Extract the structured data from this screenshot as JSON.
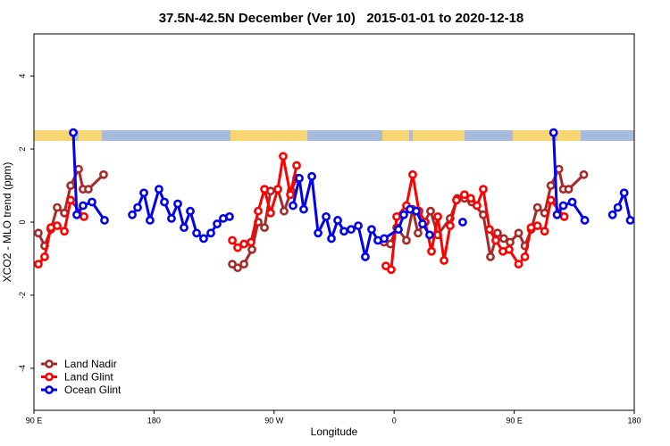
{
  "chart_data": {
    "type": "line",
    "title": "37.5N-42.5N December (Ver 10)   2015-01-01 to 2020-12-18",
    "x_label": "Longitude",
    "y_label": "XCO2 - MLO trend (ppm)",
    "xlim": [
      90,
      540
    ],
    "ylim": [
      -5.15,
      5.15
    ],
    "xticks": [
      {
        "value": 90,
        "label": "90 E"
      },
      180,
      {
        "value": 270,
        "label": "90 W"
      },
      {
        "value": 360,
        "label": "0"
      },
      {
        "value": 450,
        "label": "90 E"
      },
      {
        "value": 540,
        "label": "180"
      }
    ],
    "yticks": [
      4,
      2,
      0,
      -2,
      -4
    ],
    "legend": "bottomleft",
    "series": [
      {
        "name": "Land Nadir",
        "color": "#a52a2a",
        "x": [
          93.3,
          98.0,
          102.7,
          107.4,
          112.8,
          117.5,
          123.5,
          126.8,
          130.8,
          142.2,
          null,
          238.7,
          242.7,
          247.4,
          253.4,
          258.1,
          262.8,
          267.4,
          272.8,
          277.5,
          282.8,
          286.9,
          null,
          352.5,
          357.2,
          361.9,
          369.2,
          373.9,
          377.9,
          387.3,
          392.7,
          402.0,
          407.4,
          412.7,
          418.1,
          426.8,
          432.2,
          437.5,
          442.2,
          446.9,
          453.3,
          458.0,
          462.7,
          467.4,
          472.8,
          477.5,
          483.5,
          486.8,
          490.8,
          502.2
        ],
        "values": [
          -0.3,
          -0.65,
          -0.2,
          0.4,
          0.25,
          1.0,
          1.45,
          0.9,
          0.9,
          1.3,
          null,
          -1.15,
          -1.25,
          -1.15,
          -0.75,
          0.0,
          -0.15,
          0.85,
          0.9,
          0.3,
          0.85,
          1.2,
          null,
          -0.55,
          -0.6,
          -0.15,
          -0.5,
          0.35,
          -0.3,
          0.3,
          -0.35,
          0.1,
          0.65,
          0.65,
          0.55,
          0.2,
          -0.95,
          -0.3,
          -0.45,
          -0.55,
          -0.3,
          -0.65,
          -0.2,
          0.4,
          0.25,
          1.0,
          1.45,
          0.9,
          0.9,
          1.3
        ]
      },
      {
        "name": "Land Glint",
        "color": "#ff0000",
        "x": [
          93.3,
          98.0,
          102.7,
          107.4,
          112.8,
          117.5,
          127.5,
          null,
          238.7,
          242.7,
          247.4,
          252.7,
          258.1,
          262.8,
          267.4,
          272.8,
          276.8,
          282.2,
          286.9,
          null,
          353.8,
          357.8,
          361.9,
          369.2,
          373.9,
          378.6,
          383.3,
          388.0,
          392.7,
          397.4,
          402.0,
          406.7,
          412.7,
          417.4,
          422.1,
          426.8,
          431.5,
          436.2,
          441.5,
          446.2,
          453.3,
          458.0,
          462.7,
          467.4,
          472.8,
          477.5,
          487.5
        ],
        "values": [
          -1.15,
          -0.95,
          -0.15,
          -0.1,
          -0.25,
          0.6,
          0.15,
          null,
          -0.5,
          -0.7,
          -0.6,
          -0.55,
          0.3,
          0.9,
          0.25,
          0.9,
          1.8,
          0.75,
          1.55,
          null,
          -1.2,
          -1.3,
          0.15,
          0.45,
          1.3,
          0.3,
          0.0,
          -0.8,
          0.15,
          -1.05,
          -0.1,
          0.6,
          0.75,
          0.65,
          0.45,
          0.9,
          -0.2,
          -0.5,
          -0.8,
          -0.75,
          -1.15,
          -0.95,
          -0.15,
          -0.1,
          -0.25,
          0.6,
          0.15
        ]
      },
      {
        "name": "Ocean Glint",
        "color": "#0000ee",
        "x": [
          119.5,
          122.1,
          126.8,
          133.5,
          142.9,
          null,
          163.7,
          167.7,
          172.4,
          177.0,
          183.7,
          187.8,
          193.1,
          197.8,
          202.5,
          207.2,
          211.9,
          217.2,
          222.6,
          227.3,
          231.9,
          236.6,
          null,
          284.2,
          288.9,
          292.2,
          298.3,
          303.0,
          309.0,
          313.0,
          317.7,
          322.4,
          327.7,
          333.1,
          338.4,
          343.1,
          347.8,
          352.5,
          363.2,
          367.2,
          371.9,
          376.6,
          381.3,
          386.6,
          null,
          411.4,
          null,
          479.5,
          482.1,
          486.8,
          493.5,
          502.9,
          null,
          523.7,
          527.7,
          532.4,
          537.0
        ],
        "values": [
          2.45,
          0.2,
          0.45,
          0.55,
          0.05,
          null,
          0.2,
          0.4,
          0.8,
          0.05,
          0.9,
          0.55,
          0.1,
          0.5,
          -0.15,
          0.3,
          -0.3,
          -0.45,
          -0.3,
          -0.05,
          0.1,
          0.15,
          null,
          0.45,
          1.2,
          0.35,
          1.25,
          -0.3,
          0.15,
          -0.45,
          0.05,
          -0.25,
          -0.2,
          -0.1,
          -0.95,
          -0.2,
          -0.5,
          -0.45,
          -0.2,
          0.2,
          0.35,
          0.3,
          -0.05,
          -0.35,
          null,
          0.0,
          null,
          2.45,
          0.2,
          0.45,
          0.55,
          0.05,
          null,
          0.2,
          0.4,
          0.8,
          0.05
        ]
      }
    ]
  }
}
